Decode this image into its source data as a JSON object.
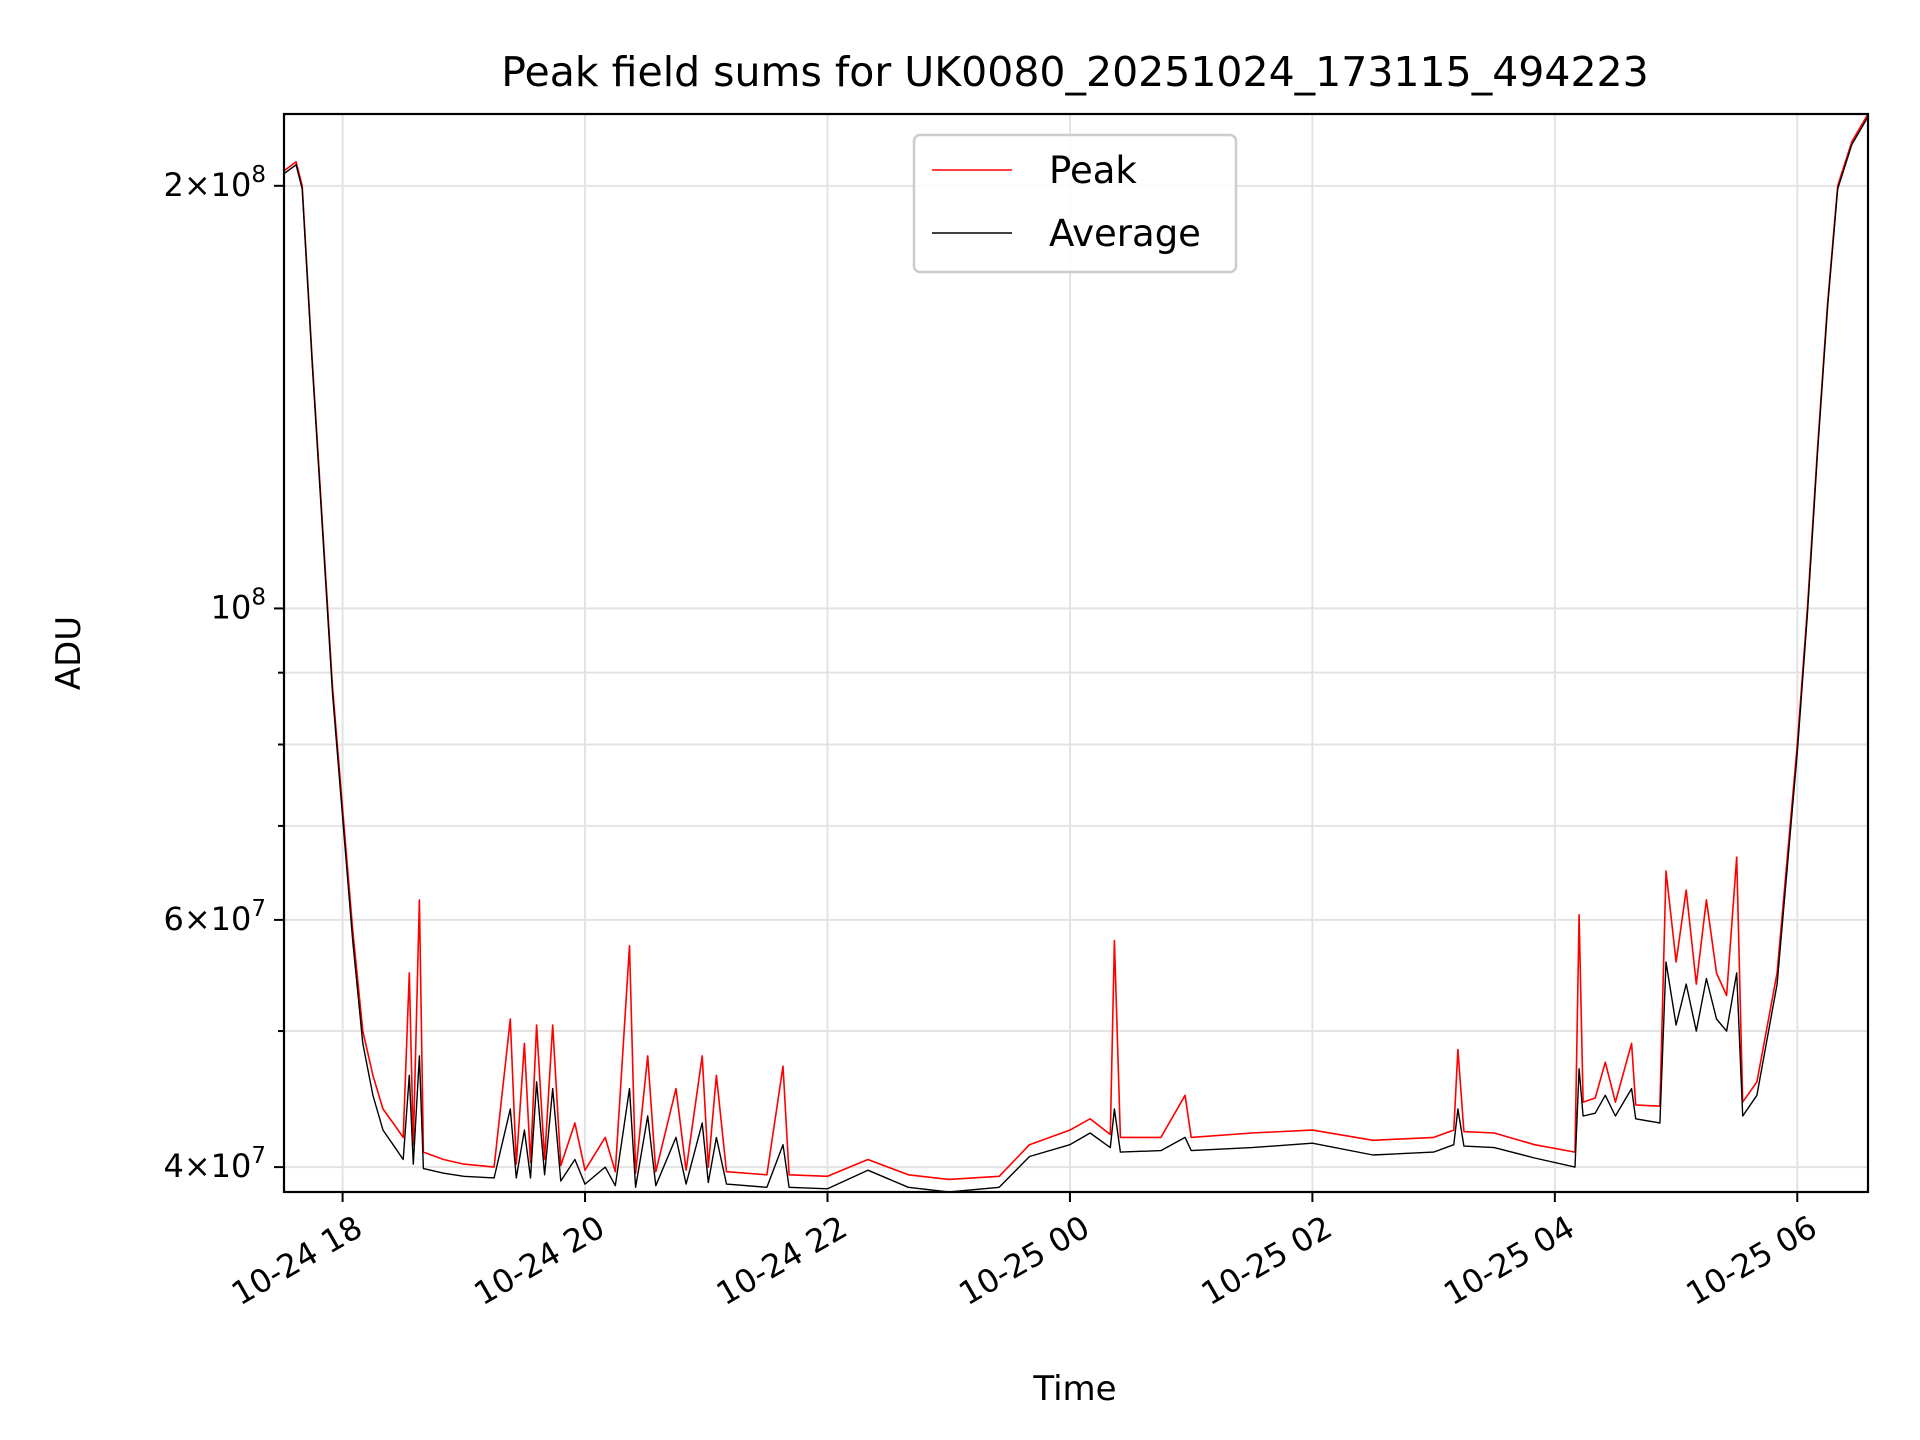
{
  "chart_data": {
    "type": "line",
    "title": "Peak field sums for UK0080_20251024_173115_494223",
    "xlabel": "Time",
    "ylabel": "ADU",
    "y_scale": "log",
    "ylim": [
      38400000,
      225000000
    ],
    "xlim": [
      "2025-10-24 17:31",
      "2025-10-25 06:35"
    ],
    "grid": true,
    "legend_position": "top-center",
    "x_ticks": [
      {
        "value": "2025-10-24 18:00",
        "label": "10-24 18"
      },
      {
        "value": "2025-10-24 20:00",
        "label": "10-24 20"
      },
      {
        "value": "2025-10-24 22:00",
        "label": "10-24 22"
      },
      {
        "value": "2025-10-25 00:00",
        "label": "10-25 00"
      },
      {
        "value": "2025-10-25 02:00",
        "label": "10-25 02"
      },
      {
        "value": "2025-10-25 04:00",
        "label": "10-25 04"
      },
      {
        "value": "2025-10-25 06:00",
        "label": "10-25 06"
      }
    ],
    "y_ticks": [
      {
        "value": 40000000,
        "mantissa": "4",
        "exp": "7"
      },
      {
        "value": 60000000,
        "mantissa": "6",
        "exp": "7"
      },
      {
        "value": 100000000,
        "mantissa": "",
        "exp": "8"
      },
      {
        "value": 200000000,
        "mantissa": "2",
        "exp": "8"
      }
    ],
    "y_minor_ticks": [
      50000000,
      70000000,
      80000000,
      90000000
    ],
    "series": [
      {
        "name": "Peak",
        "color": "#ff0000",
        "points": [
          [
            "2025-10-24 17:31",
            205000000
          ],
          [
            "2025-10-24 17:37",
            208000000
          ],
          [
            "2025-10-24 17:40",
            200000000
          ],
          [
            "2025-10-24 17:45",
            150000000
          ],
          [
            "2025-10-24 17:50",
            115000000
          ],
          [
            "2025-10-24 17:55",
            88000000
          ],
          [
            "2025-10-24 18:00",
            72000000
          ],
          [
            "2025-10-24 18:05",
            59000000
          ],
          [
            "2025-10-24 18:10",
            50000000
          ],
          [
            "2025-10-24 18:15",
            46500000
          ],
          [
            "2025-10-24 18:20",
            44000000
          ],
          [
            "2025-10-24 18:25",
            43000000
          ],
          [
            "2025-10-24 18:30",
            42000000
          ],
          [
            "2025-10-24 18:33",
            55000000
          ],
          [
            "2025-10-24 18:35",
            41500000
          ],
          [
            "2025-10-24 18:38",
            62000000
          ],
          [
            "2025-10-24 18:40",
            41000000
          ],
          [
            "2025-10-24 18:50",
            40500000
          ],
          [
            "2025-10-24 19:00",
            40200000
          ],
          [
            "2025-10-24 19:15",
            40000000
          ],
          [
            "2025-10-24 19:23",
            51000000
          ],
          [
            "2025-10-24 19:26",
            40200000
          ],
          [
            "2025-10-24 19:30",
            49000000
          ],
          [
            "2025-10-24 19:33",
            40300000
          ],
          [
            "2025-10-24 19:36",
            50500000
          ],
          [
            "2025-10-24 19:40",
            40500000
          ],
          [
            "2025-10-24 19:44",
            50500000
          ],
          [
            "2025-10-24 19:48",
            40100000
          ],
          [
            "2025-10-24 19:55",
            43000000
          ],
          [
            "2025-10-24 20:00",
            39800000
          ],
          [
            "2025-10-24 20:10",
            42000000
          ],
          [
            "2025-10-24 20:15",
            39700000
          ],
          [
            "2025-10-24 20:22",
            57500000
          ],
          [
            "2025-10-24 20:25",
            39600000
          ],
          [
            "2025-10-24 20:31",
            48000000
          ],
          [
            "2025-10-24 20:35",
            39700000
          ],
          [
            "2025-10-24 20:45",
            45500000
          ],
          [
            "2025-10-24 20:50",
            39800000
          ],
          [
            "2025-10-24 20:58",
            48000000
          ],
          [
            "2025-10-24 21:01",
            40000000
          ],
          [
            "2025-10-24 21:05",
            46500000
          ],
          [
            "2025-10-24 21:10",
            39700000
          ],
          [
            "2025-10-24 21:30",
            39500000
          ],
          [
            "2025-10-24 21:38",
            47200000
          ],
          [
            "2025-10-24 21:41",
            39500000
          ],
          [
            "2025-10-24 22:00",
            39400000
          ],
          [
            "2025-10-24 22:20",
            40500000
          ],
          [
            "2025-10-24 22:40",
            39500000
          ],
          [
            "2025-10-24 23:00",
            39200000
          ],
          [
            "2025-10-24 23:25",
            39400000
          ],
          [
            "2025-10-24 23:40",
            41500000
          ],
          [
            "2025-10-25 00:00",
            42500000
          ],
          [
            "2025-10-25 00:10",
            43300000
          ],
          [
            "2025-10-25 00:20",
            42200000
          ],
          [
            "2025-10-25 00:22",
            58000000
          ],
          [
            "2025-10-25 00:25",
            42000000
          ],
          [
            "2025-10-25 00:45",
            42000000
          ],
          [
            "2025-10-25 00:57",
            45000000
          ],
          [
            "2025-10-25 01:00",
            42000000
          ],
          [
            "2025-10-25 01:30",
            42300000
          ],
          [
            "2025-10-25 02:00",
            42500000
          ],
          [
            "2025-10-25 02:30",
            41800000
          ],
          [
            "2025-10-25 03:00",
            42000000
          ],
          [
            "2025-10-25 03:10",
            42500000
          ],
          [
            "2025-10-25 03:12",
            48500000
          ],
          [
            "2025-10-25 03:15",
            42400000
          ],
          [
            "2025-10-25 03:30",
            42300000
          ],
          [
            "2025-10-25 03:50",
            41500000
          ],
          [
            "2025-10-25 04:10",
            41000000
          ],
          [
            "2025-10-25 04:12",
            60500000
          ],
          [
            "2025-10-25 04:14",
            44500000
          ],
          [
            "2025-10-25 04:20",
            44800000
          ],
          [
            "2025-10-25 04:25",
            47500000
          ],
          [
            "2025-10-25 04:30",
            44500000
          ],
          [
            "2025-10-25 04:38",
            49000000
          ],
          [
            "2025-10-25 04:40",
            44300000
          ],
          [
            "2025-10-25 04:52",
            44200000
          ],
          [
            "2025-10-25 04:55",
            65000000
          ],
          [
            "2025-10-25 05:00",
            56000000
          ],
          [
            "2025-10-25 05:05",
            63000000
          ],
          [
            "2025-10-25 05:10",
            54000000
          ],
          [
            "2025-10-25 05:15",
            62000000
          ],
          [
            "2025-10-25 05:20",
            55000000
          ],
          [
            "2025-10-25 05:25",
            53000000
          ],
          [
            "2025-10-25 05:30",
            66500000
          ],
          [
            "2025-10-25 05:33",
            44500000
          ],
          [
            "2025-10-25 05:40",
            46000000
          ],
          [
            "2025-10-25 05:50",
            55000000
          ],
          [
            "2025-10-25 06:00",
            80000000
          ],
          [
            "2025-10-25 06:05",
            100000000
          ],
          [
            "2025-10-25 06:10",
            130000000
          ],
          [
            "2025-10-25 06:15",
            165000000
          ],
          [
            "2025-10-25 06:20",
            200000000
          ],
          [
            "2025-10-25 06:27",
            215000000
          ],
          [
            "2025-10-25 06:35",
            225000000
          ]
        ]
      },
      {
        "name": "Average",
        "color": "#000000",
        "points": [
          [
            "2025-10-24 17:31",
            204000000
          ],
          [
            "2025-10-24 17:37",
            207000000
          ],
          [
            "2025-10-24 17:40",
            199000000
          ],
          [
            "2025-10-24 17:45",
            149000000
          ],
          [
            "2025-10-24 17:50",
            114000000
          ],
          [
            "2025-10-24 17:55",
            87000000
          ],
          [
            "2025-10-24 18:00",
            71000000
          ],
          [
            "2025-10-24 18:05",
            58000000
          ],
          [
            "2025-10-24 18:10",
            49000000
          ],
          [
            "2025-10-24 18:15",
            45000000
          ],
          [
            "2025-10-24 18:20",
            42500000
          ],
          [
            "2025-10-24 18:25",
            41500000
          ],
          [
            "2025-10-24 18:30",
            40500000
          ],
          [
            "2025-10-24 18:33",
            46500000
          ],
          [
            "2025-10-24 18:35",
            40200000
          ],
          [
            "2025-10-24 18:38",
            48000000
          ],
          [
            "2025-10-24 18:40",
            39900000
          ],
          [
            "2025-10-24 18:50",
            39600000
          ],
          [
            "2025-10-24 19:00",
            39400000
          ],
          [
            "2025-10-24 19:15",
            39300000
          ],
          [
            "2025-10-24 19:23",
            44000000
          ],
          [
            "2025-10-24 19:26",
            39300000
          ],
          [
            "2025-10-24 19:30",
            42500000
          ],
          [
            "2025-10-24 19:33",
            39300000
          ],
          [
            "2025-10-24 19:36",
            46000000
          ],
          [
            "2025-10-24 19:40",
            39500000
          ],
          [
            "2025-10-24 19:44",
            45500000
          ],
          [
            "2025-10-24 19:48",
            39100000
          ],
          [
            "2025-10-24 19:55",
            40500000
          ],
          [
            "2025-10-24 20:00",
            38900000
          ],
          [
            "2025-10-24 20:10",
            40000000
          ],
          [
            "2025-10-24 20:15",
            38800000
          ],
          [
            "2025-10-24 20:22",
            45500000
          ],
          [
            "2025-10-24 20:25",
            38700000
          ],
          [
            "2025-10-24 20:31",
            43500000
          ],
          [
            "2025-10-24 20:35",
            38800000
          ],
          [
            "2025-10-24 20:45",
            42000000
          ],
          [
            "2025-10-24 20:50",
            38900000
          ],
          [
            "2025-10-24 20:58",
            43000000
          ],
          [
            "2025-10-24 21:01",
            39000000
          ],
          [
            "2025-10-24 21:05",
            42000000
          ],
          [
            "2025-10-24 21:10",
            38900000
          ],
          [
            "2025-10-24 21:30",
            38700000
          ],
          [
            "2025-10-24 21:38",
            41500000
          ],
          [
            "2025-10-24 21:41",
            38700000
          ],
          [
            "2025-10-24 22:00",
            38600000
          ],
          [
            "2025-10-24 22:20",
            39800000
          ],
          [
            "2025-10-24 22:40",
            38700000
          ],
          [
            "2025-10-24 23:00",
            38400000
          ],
          [
            "2025-10-24 23:25",
            38700000
          ],
          [
            "2025-10-24 23:40",
            40700000
          ],
          [
            "2025-10-25 00:00",
            41500000
          ],
          [
            "2025-10-25 00:10",
            42300000
          ],
          [
            "2025-10-25 00:20",
            41300000
          ],
          [
            "2025-10-25 00:22",
            44000000
          ],
          [
            "2025-10-25 00:25",
            41000000
          ],
          [
            "2025-10-25 00:45",
            41100000
          ],
          [
            "2025-10-25 00:57",
            42000000
          ],
          [
            "2025-10-25 01:00",
            41100000
          ],
          [
            "2025-10-25 01:30",
            41300000
          ],
          [
            "2025-10-25 02:00",
            41600000
          ],
          [
            "2025-10-25 02:30",
            40800000
          ],
          [
            "2025-10-25 03:00",
            41000000
          ],
          [
            "2025-10-25 03:10",
            41500000
          ],
          [
            "2025-10-25 03:12",
            44000000
          ],
          [
            "2025-10-25 03:15",
            41400000
          ],
          [
            "2025-10-25 03:30",
            41300000
          ],
          [
            "2025-10-25 03:50",
            40600000
          ],
          [
            "2025-10-25 04:10",
            40000000
          ],
          [
            "2025-10-25 04:12",
            47000000
          ],
          [
            "2025-10-25 04:14",
            43500000
          ],
          [
            "2025-10-25 04:20",
            43700000
          ],
          [
            "2025-10-25 04:25",
            45000000
          ],
          [
            "2025-10-25 04:30",
            43500000
          ],
          [
            "2025-10-25 04:38",
            45500000
          ],
          [
            "2025-10-25 04:40",
            43300000
          ],
          [
            "2025-10-25 04:52",
            43000000
          ],
          [
            "2025-10-25 04:55",
            56000000
          ],
          [
            "2025-10-25 05:00",
            50500000
          ],
          [
            "2025-10-25 05:05",
            54000000
          ],
          [
            "2025-10-25 05:10",
            50000000
          ],
          [
            "2025-10-25 05:15",
            54500000
          ],
          [
            "2025-10-25 05:20",
            51000000
          ],
          [
            "2025-10-25 05:25",
            50000000
          ],
          [
            "2025-10-25 05:30",
            55000000
          ],
          [
            "2025-10-25 05:33",
            43500000
          ],
          [
            "2025-10-25 05:40",
            45000000
          ],
          [
            "2025-10-25 05:50",
            54000000
          ],
          [
            "2025-10-25 06:00",
            79000000
          ],
          [
            "2025-10-25 06:05",
            99000000
          ],
          [
            "2025-10-25 06:10",
            129000000
          ],
          [
            "2025-10-25 06:15",
            164000000
          ],
          [
            "2025-10-25 06:20",
            199000000
          ],
          [
            "2025-10-25 06:27",
            214000000
          ],
          [
            "2025-10-25 06:35",
            224000000
          ]
        ]
      }
    ]
  }
}
